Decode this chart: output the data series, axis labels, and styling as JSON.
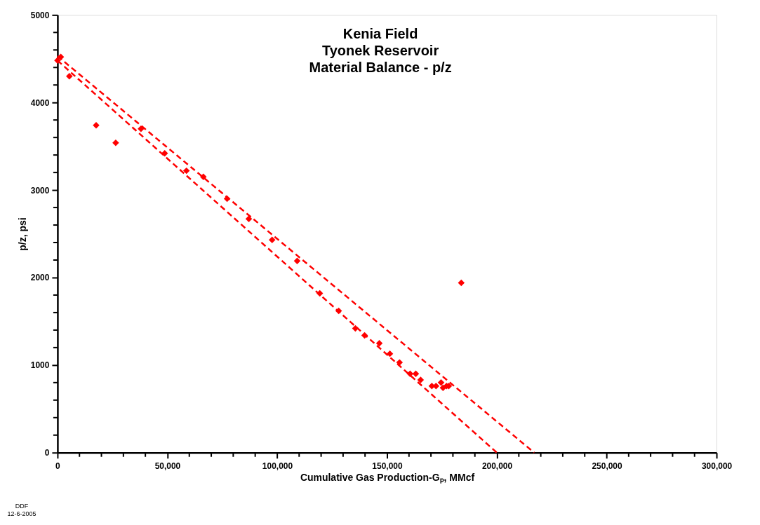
{
  "chart_data": {
    "type": "scatter",
    "title": "Kenia Field\nTyonek Reservoir\nMaterial Balance - p/z",
    "xlabel": "Cumulative Gas Production-Gₚ, MMcf",
    "ylabel": "p/z, psi",
    "annotations": [
      "DDF\n12-6-2005"
    ],
    "series": [
      {
        "type": "scatter",
        "color": "#ff0000",
        "marker": "diamond",
        "x": [
          0,
          1500,
          5400,
          17600,
          26500,
          38000,
          48800,
          58700,
          66400,
          77200,
          87100,
          97700,
          109100,
          119400,
          128000,
          135600,
          139800,
          146500,
          151300,
          155700,
          160500,
          163100,
          165300,
          170400,
          172300,
          174600,
          175500,
          177100,
          178100,
          183800
        ],
        "values": [
          4480,
          4520,
          4300,
          3740,
          3540,
          3700,
          3420,
          3220,
          3150,
          2900,
          2670,
          2430,
          2190,
          1820,
          1620,
          1420,
          1340,
          1250,
          1130,
          1030,
          900,
          900,
          830,
          760,
          760,
          800,
          740,
          760,
          760,
          1940
        ]
      },
      {
        "type": "line",
        "color": "#ff0000",
        "line_style": "dashed",
        "marker": "none",
        "x": [
          0,
          217000
        ],
        "values": [
          4530,
          0
        ]
      },
      {
        "type": "line",
        "color": "#ff0000",
        "line_style": "dashed",
        "marker": "none",
        "x": [
          0,
          200000
        ],
        "values": [
          4480,
          0
        ]
      }
    ],
    "xlim": [
      0,
      300000
    ],
    "ylim": [
      0,
      5000
    ],
    "xticks": [
      0,
      {
        "value": 50000,
        "label": "50,000"
      },
      {
        "value": 100000,
        "label": "100,000"
      },
      {
        "value": 150000,
        "label": "150,000"
      },
      {
        "value": 200000,
        "label": "200,000"
      },
      {
        "value": 250000,
        "label": "250,000"
      },
      {
        "value": 300000,
        "label": "300,000"
      },
      {
        "value": 10000,
        "label": null
      },
      {
        "value": 20000,
        "label": null
      },
      {
        "value": 30000,
        "label": null
      },
      {
        "value": 40000,
        "label": null
      },
      {
        "value": 60000,
        "label": null
      },
      {
        "value": 70000,
        "label": null
      },
      {
        "value": 80000,
        "label": null
      },
      {
        "value": 90000,
        "label": null
      },
      {
        "value": 110000,
        "label": null
      },
      {
        "value": 120000,
        "label": null
      },
      {
        "value": 130000,
        "label": null
      },
      {
        "value": 140000,
        "label": null
      },
      {
        "value": 160000,
        "label": null
      },
      {
        "value": 170000,
        "label": null
      },
      {
        "value": 180000,
        "label": null
      },
      {
        "value": 190000,
        "label": null
      },
      {
        "value": 210000,
        "label": null
      },
      {
        "value": 220000,
        "label": null
      },
      {
        "value": 230000,
        "label": null
      },
      {
        "value": 240000,
        "label": null
      },
      {
        "value": 260000,
        "label": null
      },
      {
        "value": 270000,
        "label": null
      },
      {
        "value": 280000,
        "label": null
      },
      {
        "value": 290000,
        "label": null
      }
    ],
    "yticks": [
      0,
      1000,
      2000,
      3000,
      4000,
      5000,
      {
        "value": 200,
        "label": null
      },
      {
        "value": 400,
        "label": null
      },
      {
        "value": 600,
        "label": null
      },
      {
        "value": 800,
        "label": null
      },
      {
        "value": 1200,
        "label": null
      },
      {
        "value": 1400,
        "label": null
      },
      {
        "value": 1600,
        "label": null
      },
      {
        "value": 1800,
        "label": null
      },
      {
        "value": 2200,
        "label": null
      },
      {
        "value": 2400,
        "label": null
      },
      {
        "value": 2600,
        "label": null
      },
      {
        "value": 2800,
        "label": null
      },
      {
        "value": 3200,
        "label": null
      },
      {
        "value": 3400,
        "label": null
      },
      {
        "value": 3600,
        "label": null
      },
      {
        "value": 3800,
        "label": null
      },
      {
        "value": 4200,
        "label": null
      },
      {
        "value": 4400,
        "label": null
      },
      {
        "value": 4600,
        "label": null
      },
      {
        "value": 4800,
        "label": null
      }
    ],
    "grid": false
  }
}
